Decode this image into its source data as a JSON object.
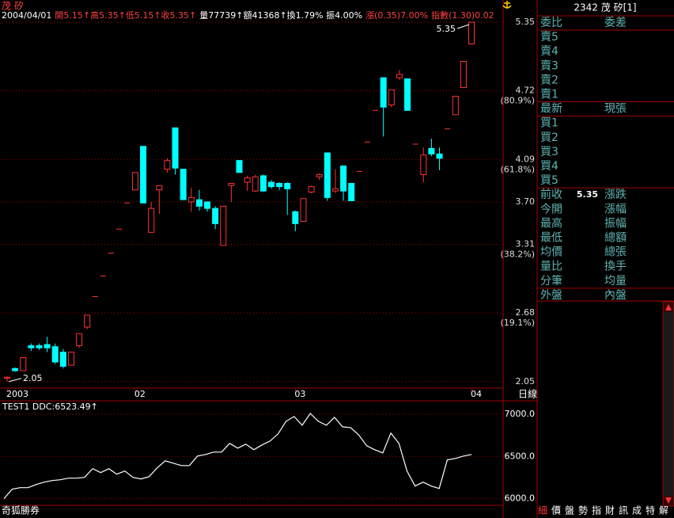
{
  "title": "茂 矽",
  "header": [
    {
      "text": "2004/04/01",
      "color": "#ffffff"
    },
    {
      "text": "開5.15↑高5.35↑低5.15↑收5.35↑",
      "color": "#ff4040"
    },
    {
      "text": "量77739↑額41368↑換1.79% 振4.00%",
      "color": "#ffffff"
    },
    {
      "text": "漲(0.35)7.00%",
      "color": "#ff4040"
    },
    {
      "text": "指數(1.30)0.02",
      "color": "#ff4040"
    }
  ],
  "chart_data": [
    {
      "type": "candlestick",
      "categories": [
        "2003",
        null,
        null,
        null,
        null,
        null,
        null,
        null,
        null,
        null,
        null,
        null,
        null,
        null,
        null,
        null,
        "02",
        null,
        null,
        null,
        null,
        null,
        null,
        null,
        null,
        null,
        null,
        null,
        null,
        null,
        null,
        null,
        null,
        null,
        null,
        null,
        "03",
        null,
        null,
        null,
        null,
        null,
        null,
        null,
        null,
        null,
        null,
        null,
        null,
        null,
        null,
        null,
        null,
        null,
        null,
        null,
        null,
        null,
        "04"
      ],
      "x_label": "日線",
      "open": [
        2.08,
        2.17,
        2.15,
        2.38,
        2.38,
        2.39,
        2.37,
        2.32,
        2.2,
        2.38,
        2.55,
        2.83,
        3.02,
        3.23,
        3.45,
        3.69,
        3.81,
        4.21,
        3.42,
        3.81,
        4.0,
        4.38,
        4.0,
        3.7,
        3.72,
        3.7,
        3.64,
        3.3,
        3.85,
        4.08,
        3.88,
        3.8,
        3.94,
        3.88,
        3.87,
        3.87,
        3.61,
        3.52,
        3.79,
        3.93,
        4.15,
        3.8,
        4.03,
        3.87,
        3.98,
        4.25,
        4.54,
        4.84,
        4.59,
        4.84,
        4.83,
        4.23,
        3.95,
        4.19,
        4.14,
        4.37,
        4.5,
        4.75,
        5.15
      ],
      "high": [
        2.1,
        2.18,
        2.27,
        2.4,
        2.4,
        2.46,
        2.4,
        2.35,
        2.32,
        2.49,
        2.66,
        2.83,
        3.02,
        3.23,
        3.45,
        3.69,
        3.97,
        4.21,
        3.7,
        3.85,
        4.1,
        4.38,
        4.0,
        3.83,
        3.81,
        3.7,
        3.66,
        3.66,
        3.87,
        4.08,
        3.94,
        3.95,
        3.95,
        3.9,
        3.88,
        3.88,
        3.62,
        3.73,
        3.85,
        3.96,
        4.15,
        4.0,
        4.03,
        3.87,
        3.98,
        4.25,
        4.54,
        4.84,
        4.73,
        4.91,
        4.83,
        4.23,
        4.2,
        4.28,
        4.2,
        4.37,
        4.67,
        4.99,
        5.35
      ],
      "low": [
        2.05,
        2.14,
        2.15,
        2.33,
        2.34,
        2.32,
        2.21,
        2.17,
        2.2,
        2.36,
        2.53,
        2.83,
        3.02,
        3.23,
        3.45,
        3.69,
        3.81,
        3.69,
        3.42,
        3.59,
        3.97,
        3.95,
        3.72,
        3.61,
        3.62,
        3.61,
        3.45,
        3.3,
        3.7,
        3.97,
        3.8,
        3.79,
        3.79,
        3.82,
        3.81,
        3.58,
        3.43,
        3.52,
        3.78,
        3.9,
        3.71,
        3.78,
        3.71,
        3.71,
        3.98,
        4.25,
        4.54,
        4.3,
        4.57,
        4.82,
        4.54,
        4.23,
        3.88,
        4.12,
        3.99,
        4.37,
        4.5,
        4.75,
        5.15
      ],
      "close": [
        2.09,
        2.15,
        2.27,
        2.36,
        2.36,
        2.36,
        2.23,
        2.19,
        2.32,
        2.49,
        2.66,
        2.83,
        3.02,
        3.23,
        3.45,
        3.69,
        3.97,
        3.69,
        3.64,
        3.85,
        4.08,
        4.01,
        3.72,
        3.74,
        3.66,
        3.64,
        3.5,
        3.66,
        3.87,
        3.97,
        3.92,
        3.93,
        3.8,
        3.84,
        3.84,
        3.82,
        3.5,
        3.73,
        3.84,
        3.95,
        3.74,
        3.82,
        3.8,
        3.71,
        3.98,
        4.25,
        4.54,
        4.57,
        4.73,
        4.87,
        4.54,
        4.23,
        4.13,
        4.14,
        4.1,
        4.37,
        4.67,
        4.99,
        5.35
      ],
      "up_color": "#ff3232",
      "down_color": "#00ffff",
      "ylim": [
        1.99,
        5.35
      ],
      "yticks": [
        5.35,
        4.72,
        4.09,
        {
          "value": 3.7,
          "label": "3.70"
        },
        3.31,
        2.68,
        2.05
      ],
      "fib_ticks": [
        {
          "value": 4.72,
          "label": "(80.9%)"
        },
        {
          "value": 4.09,
          "label": "(61.8%)"
        },
        {
          "value": 3.31,
          "label": "(38.2%)"
        },
        {
          "value": 2.68,
          "label": "(19.1%)"
        }
      ],
      "grid": true,
      "low_mark": 2.05,
      "high_mark": 5.35
    },
    {
      "type": "line",
      "title": "TEST1 DDC:6523.49↑",
      "color": "#ffffff",
      "values": [
        6000,
        6112,
        6130,
        6130,
        6168,
        6196,
        6215,
        6224,
        6243,
        6243,
        6252,
        6355,
        6308,
        6355,
        6290,
        6327,
        6252,
        6233,
        6261,
        6364,
        6448,
        6420,
        6392,
        6392,
        6504,
        6523,
        6551,
        6551,
        6654,
        6598,
        6645,
        6579,
        6636,
        6682,
        6766,
        6916,
        6972,
        6869,
        7009,
        6916,
        6869,
        6963,
        6850,
        6841,
        6757,
        6626,
        6579,
        6542,
        6776,
        6654,
        6327,
        6149,
        6196,
        6149,
        6121,
        6458,
        6476,
        6504,
        6523.49
      ],
      "ylim": [
        5790,
        7140
      ],
      "yticks": [
        {
          "value": 7000,
          "label": "7000.0"
        },
        {
          "value": 6500,
          "label": "6500.0"
        },
        {
          "value": 6000,
          "label": "6000.0"
        }
      ],
      "grid": true
    }
  ],
  "quote_panel": {
    "title": "2342 茂 矽[1]",
    "rows": [
      {
        "l": "委比",
        "r": "委差"
      },
      {
        "l": "賣5"
      },
      {
        "l": "賣4"
      },
      {
        "l": "賣3"
      },
      {
        "l": "賣2"
      },
      {
        "l": "賣1"
      },
      {
        "l": "最新",
        "r": "現張"
      },
      {
        "l": "買1"
      },
      {
        "l": "買2"
      },
      {
        "l": "買3"
      },
      {
        "l": "買4"
      },
      {
        "l": "買5"
      },
      {
        "l": "前收",
        "v": 5.35,
        "r": "漲跌"
      },
      {
        "l": "今開",
        "r": "漲幅"
      },
      {
        "l": "最高",
        "r": "振幅"
      },
      {
        "l": "最低",
        "r": "總額"
      },
      {
        "l": "均價",
        "r": "總張"
      },
      {
        "l": "量比",
        "r": "換手"
      },
      {
        "l": "分筆",
        "r": "均量"
      },
      {
        "l": "外盤",
        "r": "內盤"
      }
    ]
  },
  "footer": "奇狐勝券",
  "tabs": [
    "細",
    "價",
    "盤",
    "勢",
    "指",
    "財",
    "訊",
    "成",
    "特",
    "解"
  ]
}
